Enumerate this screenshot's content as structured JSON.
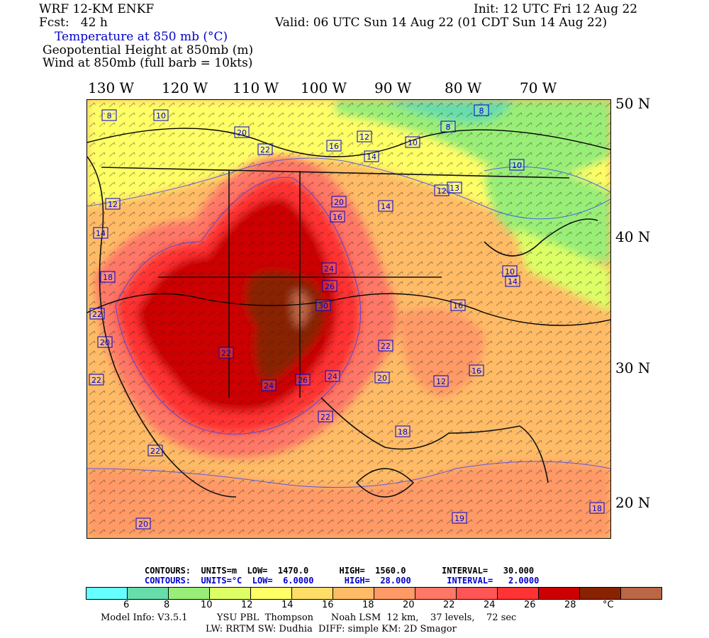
{
  "header": {
    "model": "WRF 12-KM ENKF",
    "fcst": "Fcst:   42 h",
    "init": "Init: 12 UTC Fri 12 Aug 22",
    "valid": "Valid: 06 UTC Sun 14 Aug 22 (01 CDT Sun 14 Aug 22)",
    "field1": "Temperature at 850 mb (°C)",
    "field2": "Geopotential Height at 850mb (m)",
    "field3": "Wind at 850mb (full barb = 10kts)"
  },
  "lon_labels": [
    "130 W",
    "120 W",
    "110 W",
    "100 W",
    "90 W",
    "80 W",
    "70 W"
  ],
  "lat_labels": [
    "50 N",
    "40 N",
    "30 N",
    "20 N"
  ],
  "map_labels": [
    {
      "v": "8"
    },
    {
      "v": "10"
    },
    {
      "v": "20"
    },
    {
      "v": "22"
    },
    {
      "v": "16"
    },
    {
      "v": "12"
    },
    {
      "v": "14"
    },
    {
      "v": "10"
    },
    {
      "v": "8"
    },
    {
      "v": "8"
    },
    {
      "v": "10"
    },
    {
      "v": "12"
    },
    {
      "v": "20"
    },
    {
      "v": "14"
    },
    {
      "v": "13"
    },
    {
      "v": "12"
    },
    {
      "v": "14"
    },
    {
      "v": "16"
    },
    {
      "v": "18"
    },
    {
      "v": "24"
    },
    {
      "v": "26"
    },
    {
      "v": "30"
    },
    {
      "v": "22"
    },
    {
      "v": "20"
    },
    {
      "v": "16"
    },
    {
      "v": "14"
    },
    {
      "v": "12"
    },
    {
      "v": "22"
    },
    {
      "v": "22"
    },
    {
      "v": "24"
    },
    {
      "v": "26"
    },
    {
      "v": "20"
    },
    {
      "v": "22"
    },
    {
      "v": "18"
    },
    {
      "v": "16"
    },
    {
      "v": "22"
    },
    {
      "v": "20"
    },
    {
      "v": "19"
    },
    {
      "v": "18"
    },
    {
      "v": "24"
    },
    {
      "v": "10"
    },
    {
      "v": "22"
    }
  ],
  "contours_m": {
    "prefix": "CONTOURS:  UNITS=m  LOW=  1470.0      HIGH=  1560.0       INTERVAL=   30.000"
  },
  "contours_c": {
    "prefix": "CONTOURS:  UNITS=°C  LOW=  6.0000      HIGH=  28.000       INTERVAL=   2.0000"
  },
  "colorbar": {
    "colors": [
      "#66ffff",
      "#66ddaa",
      "#99ee77",
      "#ddff66",
      "#ffff66",
      "#ffdd66",
      "#ffbb66",
      "#ff9966",
      "#ff7766",
      "#ff5555",
      "#ff3333",
      "#cc0000",
      "#882200",
      "#bb6644"
    ],
    "labels": [
      "6",
      "8",
      "10",
      "12",
      "14",
      "16",
      "18",
      "20",
      "22",
      "24",
      "26",
      "28",
      "°C"
    ]
  },
  "footer": {
    "line1": "Model Info: V3.5.1          YSU PBL  Thompson      Noah LSM  12 km,    37 levels,    72 sec",
    "line2": "LW: RRTM SW: Dudhia  DIFF: simple KM: 2D Smagor"
  }
}
